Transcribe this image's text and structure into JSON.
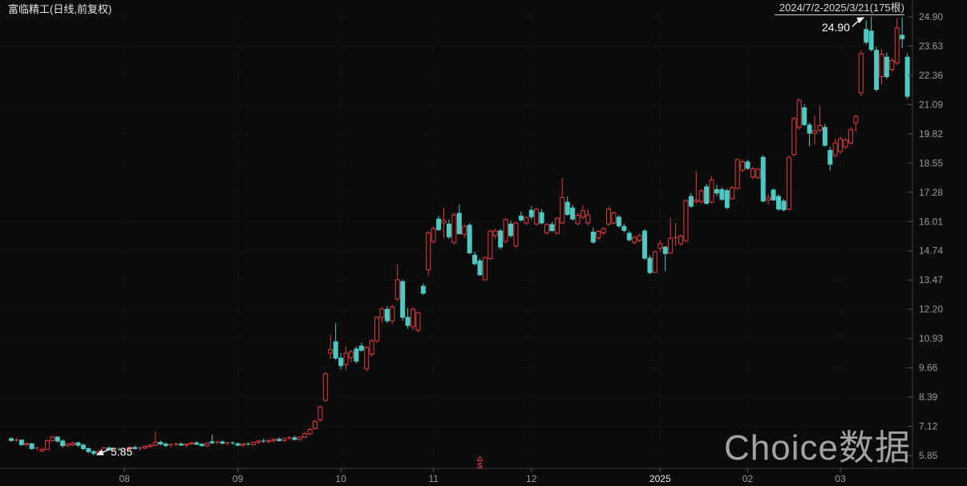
{
  "header": {
    "title": "富临精工(日线,前复权)",
    "date_range": "2024/7/2-2025/3/21(175根)"
  },
  "watermark": {
    "text": "Choice数据"
  },
  "annotations": {
    "high_label": "24.90",
    "low_label": "5.85",
    "sell_marker": "S"
  },
  "colors": {
    "background": "#0b0b0b",
    "up": "#e23b3c",
    "down": "#4fc8c2",
    "grid": "#2b2b2b",
    "vgrid": "#232323",
    "axis": "#3c3c3c",
    "tick": "#555555",
    "label": "#9a9a9a",
    "bright_label": "#e8e8e8",
    "annotation": "#ffffff",
    "watermark": "#c4c4c4"
  },
  "chart_data": {
    "type": "candlestick",
    "title": "富临精工(日线,前复权)",
    "period": "2024/7/2-2025/3/21",
    "bar_count": 175,
    "y_range": [
      5.85,
      24.9
    ],
    "grid": true,
    "y_axis_labels": [
      "24.90",
      "23.63",
      "22.36",
      "21.09",
      "19.82",
      "18.55",
      "17.28",
      "16.01",
      "14.74",
      "13.47",
      "12.20",
      "10.93",
      "9.66",
      "8.39",
      "7.12",
      "5.85"
    ],
    "x_axis_labels": [
      {
        "label": "08",
        "index": 22,
        "bright": false
      },
      {
        "label": "09",
        "index": 44,
        "bright": false
      },
      {
        "label": "10",
        "index": 64,
        "bright": false
      },
      {
        "label": "11",
        "index": 82,
        "bright": false
      },
      {
        "label": "12",
        "index": 101,
        "bright": false
      },
      {
        "label": "2025",
        "index": 126,
        "bright": true
      },
      {
        "label": "02",
        "index": 143,
        "bright": false
      },
      {
        "label": "03",
        "index": 161,
        "bright": false
      }
    ],
    "high_annotation": {
      "value": 24.9,
      "index": 167
    },
    "low_annotation": {
      "value": 5.85,
      "index": 16
    },
    "sell_marker": {
      "label": "S",
      "index": 91
    },
    "candles": [
      [
        6.58,
        6.65,
        6.45,
        6.5
      ],
      [
        6.5,
        6.6,
        6.42,
        6.52
      ],
      [
        6.52,
        6.55,
        6.28,
        6.32
      ],
      [
        6.32,
        6.42,
        6.25,
        6.38
      ],
      [
        6.36,
        6.4,
        6.1,
        6.15
      ],
      [
        6.15,
        6.22,
        6.05,
        6.18
      ],
      [
        6.05,
        6.18,
        6.0,
        6.12
      ],
      [
        6.12,
        6.55,
        6.1,
        6.5
      ],
      [
        6.5,
        6.72,
        6.45,
        6.65
      ],
      [
        6.65,
        6.7,
        6.4,
        6.48
      ],
      [
        6.48,
        6.55,
        6.2,
        6.28
      ],
      [
        6.28,
        6.4,
        6.22,
        6.35
      ],
      [
        6.32,
        6.45,
        6.25,
        6.4
      ],
      [
        6.4,
        6.45,
        6.22,
        6.3
      ],
      [
        6.3,
        6.38,
        6.08,
        6.15
      ],
      [
        6.15,
        6.2,
        5.95,
        6.02
      ],
      [
        6.02,
        6.1,
        5.85,
        5.95
      ],
      [
        5.95,
        6.08,
        5.9,
        6.03
      ],
      [
        6.03,
        6.22,
        6.0,
        6.18
      ],
      [
        6.18,
        6.25,
        6.05,
        6.1
      ],
      [
        6.1,
        6.18,
        6.02,
        6.12
      ],
      [
        6.12,
        6.2,
        6.05,
        6.08
      ],
      [
        6.08,
        6.15,
        5.95,
        6.12
      ],
      [
        6.12,
        6.25,
        6.08,
        6.2
      ],
      [
        6.2,
        6.28,
        6.1,
        6.15
      ],
      [
        6.15,
        6.22,
        6.05,
        6.18
      ],
      [
        6.18,
        6.3,
        6.12,
        6.25
      ],
      [
        6.25,
        6.35,
        6.18,
        6.3
      ],
      [
        6.3,
        6.9,
        6.25,
        6.42
      ],
      [
        6.42,
        6.5,
        6.28,
        6.35
      ],
      [
        6.35,
        6.42,
        6.22,
        6.28
      ],
      [
        6.28,
        6.38,
        6.2,
        6.32
      ],
      [
        6.32,
        6.4,
        6.25,
        6.35
      ],
      [
        6.35,
        6.42,
        6.28,
        6.3
      ],
      [
        6.3,
        6.38,
        6.22,
        6.35
      ],
      [
        6.35,
        6.45,
        6.3,
        6.4
      ],
      [
        6.4,
        6.48,
        6.3,
        6.34
      ],
      [
        6.34,
        6.4,
        6.24,
        6.28
      ],
      [
        6.28,
        6.42,
        6.22,
        6.38
      ],
      [
        6.45,
        6.75,
        6.35,
        6.4
      ],
      [
        6.4,
        6.48,
        6.32,
        6.44
      ],
      [
        6.44,
        6.5,
        6.35,
        6.38
      ],
      [
        6.38,
        6.44,
        6.28,
        6.4
      ],
      [
        6.4,
        6.46,
        6.32,
        6.36
      ],
      [
        6.36,
        6.42,
        6.25,
        6.3
      ],
      [
        6.3,
        6.38,
        6.22,
        6.35
      ],
      [
        6.35,
        6.42,
        6.28,
        6.32
      ],
      [
        6.32,
        6.45,
        6.28,
        6.42
      ],
      [
        6.42,
        6.52,
        6.35,
        6.48
      ],
      [
        6.48,
        6.58,
        6.4,
        6.45
      ],
      [
        6.45,
        6.55,
        6.38,
        6.5
      ],
      [
        6.5,
        6.6,
        6.42,
        6.55
      ],
      [
        6.55,
        6.65,
        6.45,
        6.5
      ],
      [
        6.5,
        6.62,
        6.44,
        6.58
      ],
      [
        6.58,
        6.7,
        6.52,
        6.62
      ],
      [
        6.62,
        6.72,
        6.5,
        6.55
      ],
      [
        6.55,
        6.7,
        6.48,
        6.65
      ],
      [
        6.65,
        6.85,
        6.6,
        6.8
      ],
      [
        6.8,
        7.05,
        6.72,
        6.98
      ],
      [
        7.02,
        7.4,
        6.98,
        7.32
      ],
      [
        7.4,
        8.02,
        7.32,
        7.95
      ],
      [
        8.25,
        9.48,
        8.18,
        9.4
      ],
      [
        10.3,
        11.1,
        10.05,
        10.45
      ],
      [
        10.79,
        11.6,
        10.0,
        10.08
      ],
      [
        10.08,
        10.3,
        9.6,
        9.75
      ],
      [
        9.8,
        10.6,
        9.55,
        10.3
      ],
      [
        10.1,
        10.45,
        9.9,
        10.35
      ],
      [
        10.48,
        10.6,
        9.85,
        9.95
      ],
      [
        10.6,
        10.75,
        10.35,
        10.42
      ],
      [
        9.62,
        10.6,
        9.5,
        10.54
      ],
      [
        10.25,
        10.9,
        10.15,
        10.83
      ],
      [
        10.83,
        11.9,
        10.75,
        11.85
      ],
      [
        11.85,
        12.3,
        11.6,
        12.22
      ],
      [
        12.2,
        12.35,
        11.6,
        11.7
      ],
      [
        11.7,
        12.4,
        11.55,
        12.3
      ],
      [
        12.65,
        14.15,
        12.55,
        13.48
      ],
      [
        13.4,
        13.5,
        11.7,
        11.85
      ],
      [
        11.85,
        12.25,
        11.35,
        11.5
      ],
      [
        11.45,
        12.3,
        11.3,
        12.2
      ],
      [
        11.3,
        12.1,
        11.2,
        12.05
      ],
      [
        13.2,
        13.32,
        12.8,
        12.9
      ],
      [
        13.92,
        15.6,
        13.63,
        15.52
      ],
      [
        15.15,
        15.8,
        15.05,
        15.7
      ],
      [
        16.12,
        16.25,
        15.6,
        15.66
      ],
      [
        15.95,
        16.6,
        15.3,
        16.05
      ],
      [
        15.9,
        16.1,
        15.25,
        15.35
      ],
      [
        15.1,
        16.4,
        15.0,
        16.3
      ],
      [
        16.37,
        16.75,
        15.45,
        15.48
      ],
      [
        15.45,
        15.9,
        15.3,
        15.8
      ],
      [
        15.85,
        15.95,
        14.6,
        14.65
      ],
      [
        14.55,
        14.7,
        14.1,
        14.18
      ],
      [
        14.3,
        14.4,
        13.65,
        13.7
      ],
      [
        13.48,
        14.5,
        13.45,
        14.45
      ],
      [
        14.4,
        15.65,
        14.35,
        15.6
      ],
      [
        15.4,
        15.7,
        15.25,
        15.6
      ],
      [
        15.6,
        15.7,
        14.8,
        14.9
      ],
      [
        15.15,
        16.15,
        15.05,
        16.1
      ],
      [
        15.9,
        16.05,
        15.3,
        15.4
      ],
      [
        14.95,
        16.0,
        14.88,
        15.95
      ],
      [
        16.25,
        16.45,
        16.0,
        16.08
      ],
      [
        15.95,
        16.25,
        15.85,
        16.18
      ],
      [
        16.5,
        16.68,
        16.1,
        16.22
      ],
      [
        15.9,
        16.6,
        15.85,
        16.55
      ],
      [
        16.4,
        16.55,
        15.88,
        15.95
      ],
      [
        15.52,
        15.95,
        15.45,
        15.88
      ],
      [
        15.88,
        16.0,
        15.55,
        15.62
      ],
      [
        15.5,
        16.2,
        15.45,
        16.15
      ],
      [
        15.95,
        17.9,
        15.9,
        17.05
      ],
      [
        16.85,
        17.1,
        16.25,
        16.32
      ],
      [
        16.6,
        16.75,
        16.05,
        16.12
      ],
      [
        15.92,
        16.4,
        15.85,
        16.28
      ],
      [
        16.2,
        16.7,
        16.1,
        16.48
      ],
      [
        15.95,
        16.55,
        15.85,
        16.3
      ],
      [
        15.55,
        15.75,
        15.05,
        15.12
      ],
      [
        15.3,
        15.65,
        15.2,
        15.58
      ],
      [
        15.52,
        15.78,
        15.42,
        15.7
      ],
      [
        15.9,
        16.65,
        15.82,
        16.55
      ],
      [
        15.95,
        16.45,
        15.88,
        16.38
      ],
      [
        16.2,
        16.3,
        15.75,
        15.82
      ],
      [
        15.8,
        15.92,
        15.55,
        15.62
      ],
      [
        15.5,
        15.6,
        15.15,
        15.22
      ],
      [
        15.1,
        15.4,
        15.02,
        15.32
      ],
      [
        15.2,
        15.48,
        15.12,
        15.4
      ],
      [
        15.6,
        15.68,
        14.35,
        14.42
      ],
      [
        14.42,
        14.55,
        13.72,
        13.8
      ],
      [
        13.8,
        14.75,
        13.78,
        14.7
      ],
      [
        14.85,
        15.2,
        14.7,
        15.05
      ],
      [
        14.9,
        14.95,
        13.85,
        14.62
      ],
      [
        14.65,
        16.18,
        14.6,
        15.28
      ],
      [
        15.28,
        15.95,
        14.95,
        15.32
      ],
      [
        15.05,
        15.45,
        14.95,
        15.38
      ],
      [
        15.18,
        16.98,
        15.12,
        16.92
      ],
      [
        17.1,
        17.25,
        16.6,
        16.68
      ],
      [
        16.88,
        18.2,
        16.8,
        16.95
      ],
      [
        16.88,
        17.42,
        16.8,
        17.35
      ],
      [
        17.52,
        17.65,
        16.75,
        16.8
      ],
      [
        16.85,
        18.0,
        16.8,
        17.82
      ],
      [
        17.4,
        17.6,
        17.1,
        17.25
      ],
      [
        17.4,
        17.5,
        16.9,
        16.98
      ],
      [
        17.35,
        17.45,
        16.55,
        16.62
      ],
      [
        17.0,
        17.55,
        16.95,
        17.48
      ],
      [
        17.45,
        18.75,
        17.4,
        18.7
      ],
      [
        18.25,
        18.7,
        18.15,
        18.6
      ],
      [
        18.6,
        18.7,
        18.25,
        18.32
      ],
      [
        17.95,
        18.4,
        17.85,
        18.3
      ],
      [
        17.92,
        18.35,
        17.85,
        18.28
      ],
      [
        18.8,
        18.9,
        16.85,
        16.9
      ],
      [
        16.95,
        17.2,
        16.75,
        17.05
      ],
      [
        17.38,
        17.45,
        16.9,
        16.95
      ],
      [
        17.1,
        17.2,
        16.48,
        16.55
      ],
      [
        16.9,
        17.0,
        16.45,
        16.52
      ],
      [
        16.55,
        18.88,
        16.5,
        18.8
      ],
      [
        18.92,
        20.55,
        18.85,
        20.48
      ],
      [
        20.1,
        21.35,
        20.0,
        21.28
      ],
      [
        20.95,
        21.1,
        20.15,
        20.22
      ],
      [
        20.2,
        20.3,
        19.28,
        19.85
      ],
      [
        19.85,
        20.6,
        19.35,
        19.95
      ],
      [
        19.98,
        21.05,
        19.9,
        20.18
      ],
      [
        20.1,
        20.25,
        19.25,
        19.32
      ],
      [
        19.1,
        19.25,
        18.22,
        18.5
      ],
      [
        18.88,
        19.6,
        18.8,
        19.42
      ],
      [
        19.05,
        19.7,
        18.95,
        19.6
      ],
      [
        19.25,
        19.65,
        19.15,
        19.55
      ],
      [
        19.42,
        20.1,
        19.35,
        20.0
      ],
      [
        20.3,
        20.65,
        19.9,
        20.58
      ],
      [
        21.6,
        23.45,
        21.45,
        23.3
      ],
      [
        24.35,
        24.75,
        23.7,
        23.8
      ],
      [
        24.28,
        24.9,
        23.4,
        23.48
      ],
      [
        23.45,
        23.6,
        21.65,
        21.75
      ],
      [
        22.3,
        23.5,
        21.95,
        23.28
      ],
      [
        23.15,
        23.35,
        22.2,
        22.3
      ],
      [
        22.62,
        23.1,
        22.5,
        23.0
      ],
      [
        22.9,
        24.85,
        22.8,
        24.42
      ],
      [
        24.1,
        24.88,
        23.55,
        23.95
      ],
      [
        23.15,
        23.3,
        21.35,
        21.45
      ]
    ]
  }
}
